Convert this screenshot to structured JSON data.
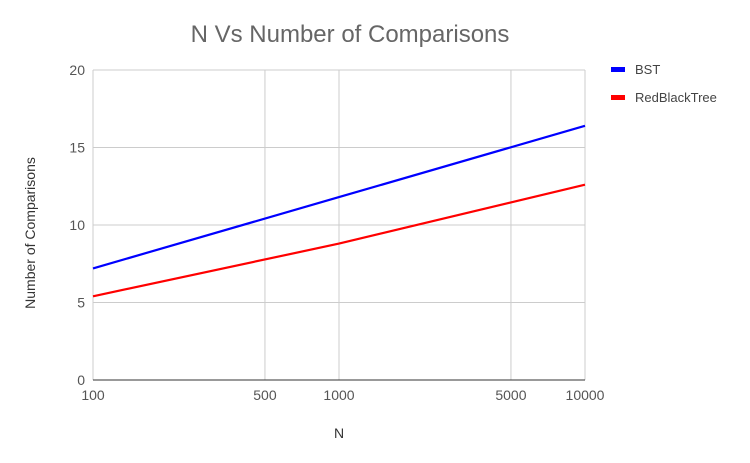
{
  "chart_data": {
    "type": "line",
    "title": "N Vs Number of Comparisons",
    "xlabel": "N",
    "ylabel": "Number of Comparisons",
    "x_scale": "log",
    "x_ticks": [
      100,
      500,
      1000,
      5000,
      10000
    ],
    "x_tick_labels": [
      "100",
      "500",
      "1000",
      "5000",
      "10000"
    ],
    "xlim": [
      100,
      10000
    ],
    "y_ticks": [
      0,
      5,
      10,
      15,
      20
    ],
    "y_tick_labels": [
      "0",
      "5",
      "10",
      "15",
      "20"
    ],
    "ylim": [
      0,
      20
    ],
    "grid": true,
    "legend_position": "right",
    "series": [
      {
        "name": "BST",
        "color": "#0000ff",
        "x": [
          100,
          1000,
          10000
        ],
        "values": [
          7.2,
          11.8,
          16.4
        ]
      },
      {
        "name": "RedBlackTree",
        "color": "#ff0000",
        "x": [
          100,
          1000,
          10000
        ],
        "values": [
          5.4,
          8.8,
          12.6
        ]
      }
    ]
  }
}
